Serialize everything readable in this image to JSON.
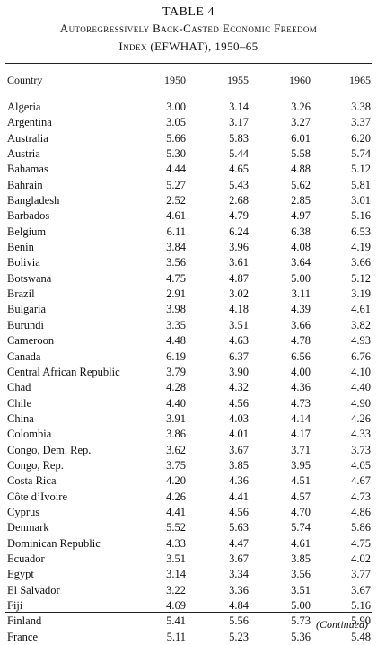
{
  "table": {
    "number": "TABLE 4",
    "title_line1": "Autoregressively Back-Casted Economic Freedom",
    "title_line2": "Index (EFWHAT), 1950–65",
    "headers": [
      "Country",
      "1950",
      "1955",
      "1960",
      "1965"
    ],
    "rows": [
      [
        "Algeria",
        "3.00",
        "3.14",
        "3.26",
        "3.38"
      ],
      [
        "Argentina",
        "3.05",
        "3.17",
        "3.27",
        "3.37"
      ],
      [
        "Australia",
        "5.66",
        "5.83",
        "6.01",
        "6.20"
      ],
      [
        "Austria",
        "5.30",
        "5.44",
        "5.58",
        "5.74"
      ],
      [
        "Bahamas",
        "4.44",
        "4.65",
        "4.88",
        "5.12"
      ],
      [
        "Bahrain",
        "5.27",
        "5.43",
        "5.62",
        "5.81"
      ],
      [
        "Bangladesh",
        "2.52",
        "2.68",
        "2.85",
        "3.01"
      ],
      [
        "Barbados",
        "4.61",
        "4.79",
        "4.97",
        "5.16"
      ],
      [
        "Belgium",
        "6.11",
        "6.24",
        "6.38",
        "6.53"
      ],
      [
        "Benin",
        "3.84",
        "3.96",
        "4.08",
        "4.19"
      ],
      [
        "Bolivia",
        "3.56",
        "3.61",
        "3.64",
        "3.66"
      ],
      [
        "Botswana",
        "4.75",
        "4.87",
        "5.00",
        "5.12"
      ],
      [
        "Brazil",
        "2.91",
        "3.02",
        "3.11",
        "3.19"
      ],
      [
        "Bulgaria",
        "3.98",
        "4.18",
        "4.39",
        "4.61"
      ],
      [
        "Burundi",
        "3.35",
        "3.51",
        "3.66",
        "3.82"
      ],
      [
        "Cameroon",
        "4.48",
        "4.63",
        "4.78",
        "4.93"
      ],
      [
        "Canada",
        "6.19",
        "6.37",
        "6.56",
        "6.76"
      ],
      [
        "Central African Republic",
        "3.79",
        "3.90",
        "4.00",
        "4.10"
      ],
      [
        "Chad",
        "4.28",
        "4.32",
        "4.36",
        "4.40"
      ],
      [
        "Chile",
        "4.40",
        "4.56",
        "4.73",
        "4.90"
      ],
      [
        "China",
        "3.91",
        "4.03",
        "4.14",
        "4.26"
      ],
      [
        "Colombia",
        "3.86",
        "4.01",
        "4.17",
        "4.33"
      ],
      [
        "Congo, Dem. Rep.",
        "3.62",
        "3.67",
        "3.71",
        "3.73"
      ],
      [
        "Congo, Rep.",
        "3.75",
        "3.85",
        "3.95",
        "4.05"
      ],
      [
        "Costa Rica",
        "4.20",
        "4.36",
        "4.51",
        "4.67"
      ],
      [
        "Côte d’Ivoire",
        "4.26",
        "4.41",
        "4.57",
        "4.73"
      ],
      [
        "Cyprus",
        "4.41",
        "4.56",
        "4.70",
        "4.86"
      ],
      [
        "Denmark",
        "5.52",
        "5.63",
        "5.74",
        "5.86"
      ],
      [
        "Dominican Republic",
        "4.33",
        "4.47",
        "4.61",
        "4.75"
      ],
      [
        "Ecuador",
        "3.51",
        "3.67",
        "3.85",
        "4.02"
      ],
      [
        "Egypt",
        "3.14",
        "3.34",
        "3.56",
        "3.77"
      ],
      [
        "El Salvador",
        "3.22",
        "3.36",
        "3.51",
        "3.67"
      ],
      [
        "Fiji",
        "4.69",
        "4.84",
        "5.00",
        "5.16"
      ],
      [
        "Finland",
        "5.41",
        "5.56",
        "5.73",
        "5.90"
      ],
      [
        "France",
        "5.11",
        "5.23",
        "5.36",
        "5.48"
      ]
    ],
    "continued": "(Continued)"
  }
}
